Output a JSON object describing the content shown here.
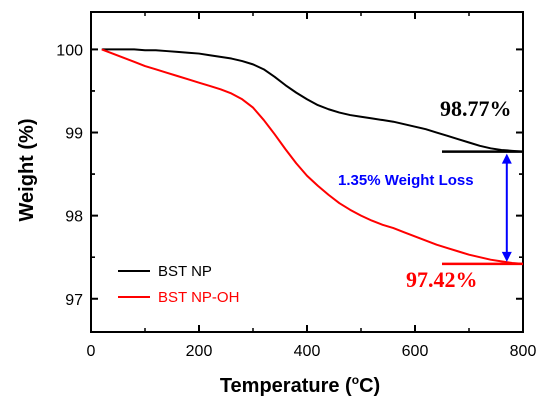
{
  "chart_data": {
    "type": "line",
    "title": "",
    "xlabel": "Temperature (",
    "xlabel_unit": "o",
    "xlabel_suffix": "C)",
    "ylabel": "Weight (%)",
    "xlim": [
      0,
      800
    ],
    "ylim": [
      96.6,
      100.45
    ],
    "xticks": [
      "0",
      "200",
      "400",
      "600",
      "800"
    ],
    "yticks": [
      "97",
      "98",
      "99",
      "100"
    ],
    "legend_position": "bottom-left",
    "grid": false,
    "series": [
      {
        "name": "BST NP",
        "color": "#000000",
        "x": [
          20,
          40,
          60,
          80,
          100,
          120,
          140,
          160,
          180,
          200,
          220,
          240,
          260,
          280,
          300,
          320,
          340,
          360,
          380,
          400,
          420,
          440,
          460,
          480,
          500,
          520,
          540,
          560,
          580,
          600,
          620,
          640,
          660,
          680,
          700,
          720,
          740,
          760,
          780,
          800
        ],
        "y": [
          100.0,
          100.0,
          100.0,
          100.0,
          99.99,
          99.99,
          99.98,
          99.97,
          99.96,
          99.95,
          99.93,
          99.91,
          99.89,
          99.86,
          99.82,
          99.76,
          99.67,
          99.57,
          99.48,
          99.4,
          99.33,
          99.28,
          99.24,
          99.21,
          99.19,
          99.17,
          99.15,
          99.13,
          99.1,
          99.07,
          99.04,
          99.0,
          98.96,
          98.92,
          98.88,
          98.84,
          98.81,
          98.79,
          98.78,
          98.77
        ]
      },
      {
        "name": "BST NP-OH",
        "color": "#ff0000",
        "x": [
          20,
          40,
          60,
          80,
          100,
          120,
          140,
          160,
          180,
          200,
          220,
          240,
          260,
          280,
          300,
          320,
          340,
          360,
          380,
          400,
          420,
          440,
          460,
          480,
          500,
          520,
          540,
          560,
          580,
          600,
          620,
          640,
          660,
          680,
          700,
          720,
          740,
          760,
          780,
          800
        ],
        "y": [
          100.0,
          99.95,
          99.9,
          99.85,
          99.8,
          99.76,
          99.72,
          99.68,
          99.64,
          99.6,
          99.56,
          99.52,
          99.47,
          99.4,
          99.3,
          99.15,
          98.98,
          98.8,
          98.63,
          98.48,
          98.36,
          98.25,
          98.15,
          98.07,
          98.0,
          97.94,
          97.89,
          97.85,
          97.8,
          97.75,
          97.7,
          97.65,
          97.61,
          97.57,
          97.53,
          97.5,
          97.47,
          97.45,
          97.43,
          97.42
        ]
      }
    ],
    "annotations": {
      "bst_np_value": {
        "text": "98.77%",
        "color": "#000000",
        "y": 98.77,
        "x_start": 650,
        "x_end": 800
      },
      "bst_np_oh_value": {
        "text": "97.42%",
        "color": "#ff0000",
        "y": 97.42,
        "x_start": 650,
        "x_end": 800
      },
      "weight_loss": {
        "text": "1.35% Weight Loss",
        "color": "#0000ff",
        "x": 770
      }
    }
  }
}
